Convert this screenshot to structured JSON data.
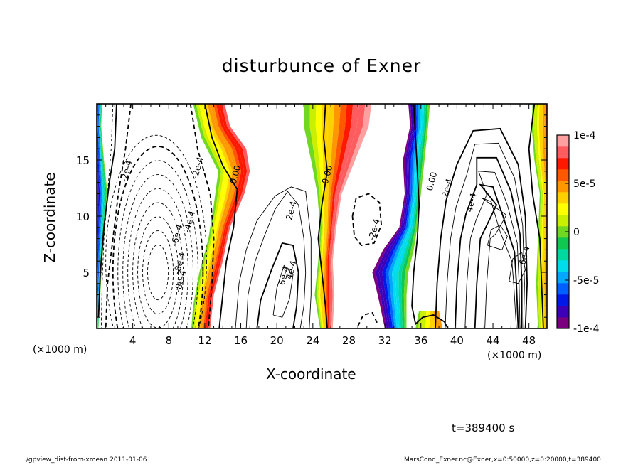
{
  "footer": {
    "left": "./gpview_dist-from-xmean  2011-01-06",
    "right": "MarsCond_Exner.nc@Exner,x=0:50000,z=0:20000,t=389400"
  },
  "timestamp": "t=389400 s",
  "chart_data": {
    "type": "heatmap",
    "title": "disturbunce of Exner",
    "xlabel": "X-coordinate",
    "ylabel": "Z-coordinate",
    "x_unit_label": "(×1000 m)",
    "x_unit_label_right": "(×1000 m)",
    "xlim": [
      0,
      50
    ],
    "ylim": [
      0,
      20
    ],
    "x_ticks": [
      4,
      8,
      12,
      16,
      20,
      24,
      28,
      32,
      36,
      40,
      44,
      48
    ],
    "y_ticks": [
      5,
      10,
      15
    ],
    "colorbar": {
      "range": [
        -0.0001,
        0.0001
      ],
      "tick_values": [
        0.0001,
        5e-05,
        0,
        -5e-05,
        -0.0001
      ],
      "tick_labels": [
        "1e-4",
        "5e-5",
        "0",
        "-5e-5",
        "-1e-4"
      ],
      "colors": [
        "#7a0080",
        "#3b00b8",
        "#0018e8",
        "#0060ff",
        "#00a8ff",
        "#00dcec",
        "#00d8a0",
        "#10c850",
        "#70d820",
        "#c8f000",
        "#ffff00",
        "#ffd000",
        "#ff9800",
        "#ff5800",
        "#ff1800",
        "#ff5c60",
        "#ffa0a0"
      ]
    },
    "contour_labels": [
      {
        "text": "-2e-4",
        "x": 3.3,
        "z": 14.0
      },
      {
        "text": "-2e-4",
        "x": 11.2,
        "z": 14.3
      },
      {
        "text": "-4e-4",
        "x": 10.3,
        "z": 9.5
      },
      {
        "text": "-6e-4",
        "x": 8.9,
        "z": 8.3
      },
      {
        "text": "-8e-4",
        "x": 9.2,
        "z": 5.8
      },
      {
        "text": "-8e-4",
        "x": 9.3,
        "z": 4.2
      },
      {
        "text": "0.00",
        "x": 15.4,
        "z": 13.7
      },
      {
        "text": "0.00",
        "x": 25.6,
        "z": 13.7
      },
      {
        "text": "0.00",
        "x": 37.2,
        "z": 13.1
      },
      {
        "text": "2e-4",
        "x": 21.6,
        "z": 10.5
      },
      {
        "text": "4e-4",
        "x": 21.6,
        "z": 5.2
      },
      {
        "text": "6e-4",
        "x": 20.8,
        "z": 4.7
      },
      {
        "text": "-2e-4",
        "x": 30.8,
        "z": 8.8
      },
      {
        "text": "2e-4",
        "x": 38.9,
        "z": 12.5
      },
      {
        "text": "4e-4",
        "x": 41.6,
        "z": 11.2
      },
      {
        "text": "6e-4",
        "x": 47.5,
        "z": 6.5
      }
    ]
  }
}
